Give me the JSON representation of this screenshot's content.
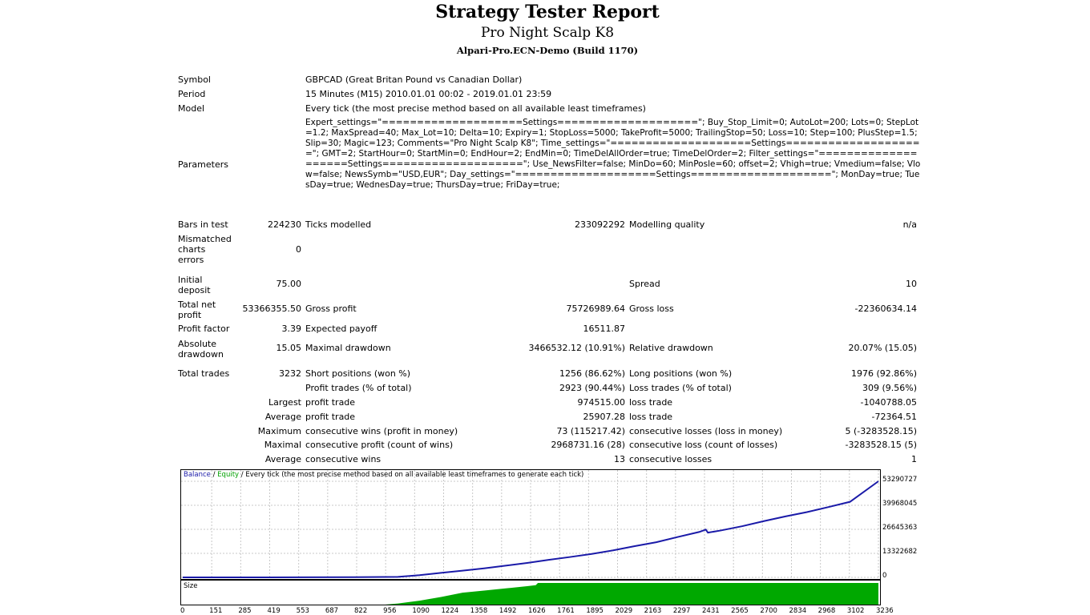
{
  "header": {
    "title": "Strategy Tester Report",
    "expert": "Pro Night Scalp K8",
    "server": "Alpari-Pro.ECN-Demo (Build 1170)"
  },
  "info": {
    "symbol_label": "Symbol",
    "symbol": "GBPCAD (Great Britan Pound vs Canadian Dollar)",
    "period_label": "Period",
    "period": "15 Minutes (M15) 2010.01.01 00:02 - 2019.01.01 23:59",
    "model_label": "Model",
    "model": "Every tick (the most precise method based on all available least timeframes)",
    "parameters_label": "Parameters",
    "parameters": "Expert_settings=\"====================Settings====================\"; Buy_Stop_Limit=0; AutoLot=200; Lots=0; StepLot=1.2; MaxSpread=40; Max_Lot=10; Delta=10; Expiry=1; StopLoss=5000; TakeProfit=5000; TrailingStop=50; Loss=10; Step=100; PlusStep=1.5; Slip=30; Magic=123; Comments=\"Pro Night Scalp K8\"; Time_settings=\"====================Settings====================\"; GMT=2; StartHour=0; StartMin=0; EndHour=2; EndMin=0; TimeDelAllOrder=true; TimeDelOrder=2; Filter_settings=\"====================Settings====================\"; Use_NewsFilter=false; MinDo=60; MinPosle=60; offset=2; Vhigh=true; Vmedium=false; Vlow=false; NewsSymb=\"USD,EUR\"; Day_settings=\"====================Settings====================\"; MonDay=true; TuesDay=true; WednesDay=true; ThursDay=true; FriDay=true;"
  },
  "stats": {
    "bars_label": "Bars in test",
    "bars": "224230",
    "ticks_label": "Ticks modelled",
    "ticks": "233092292",
    "quality_label": "Modelling quality",
    "quality": "n/a",
    "mismatch_label_1": "Mismatched",
    "mismatch_label_2": "charts",
    "mismatch_label_3": "errors",
    "mismatch": "0",
    "deposit_label_1": "Initial",
    "deposit_label_2": "deposit",
    "deposit": "75.00",
    "spread_label": "Spread",
    "spread": "10",
    "net_label_1": "Total net",
    "net_label_2": "profit",
    "net": "53366355.50",
    "gross_profit_label": "Gross profit",
    "gross_profit": "75726989.64",
    "gross_loss_label": "Gross loss",
    "gross_loss": "-22360634.14",
    "pf_label": "Profit factor",
    "pf": "3.39",
    "payoff_label": "Expected payoff",
    "payoff": "16511.87",
    "abs_dd_label_1": "Absolute",
    "abs_dd_label_2": "drawdown",
    "abs_dd": "15.05",
    "max_dd_label": "Maximal drawdown",
    "max_dd": "3466532.12 (10.91%)",
    "rel_dd_label": "Relative drawdown",
    "rel_dd": "20.07% (15.05)",
    "trades_label": "Total trades",
    "trades": "3232",
    "short_label": "Short positions (won %)",
    "short": "1256 (86.62%)",
    "long_label": "Long positions (won %)",
    "long": "1976 (92.86%)",
    "profit_trades_label": "Profit trades (% of total)",
    "profit_trades": "2923 (90.44%)",
    "loss_trades_label": "Loss trades (% of total)",
    "loss_trades": "309 (9.56%)",
    "largest_label": "Largest",
    "largest_profit_label": "profit trade",
    "largest_profit": "974515.00",
    "largest_loss_label": "loss trade",
    "largest_loss": "-1040788.05",
    "average_label": "Average",
    "average_profit_label": "profit trade",
    "average_profit": "25907.28",
    "average_loss_label": "loss trade",
    "average_loss": "-72364.51",
    "maximum_label": "Maximum",
    "max_cons_wins_label": "consecutive wins (profit in money)",
    "max_cons_wins": "73 (115217.42)",
    "max_cons_losses_label": "consecutive losses (loss in money)",
    "max_cons_losses": "5 (-3283528.15)",
    "maximal_label": "Maximal",
    "maximal_profit_label": "consecutive profit (count of wins)",
    "maximal_profit": "2968731.16 (28)",
    "maximal_loss_label": "consecutive loss (count of losses)",
    "maximal_loss": "-3283528.15 (5)",
    "avg_cons_label": "Average",
    "avg_cons_wins_label": "consecutive wins",
    "avg_cons_wins": "13",
    "avg_cons_losses_label": "consecutive losses",
    "avg_cons_losses": "1"
  },
  "chart_labels": {
    "balance": "Balance",
    "sep": " / ",
    "equity": "Equity",
    "rest": " / Every tick (the most precise method based on all available least timeframes to generate each tick)",
    "size": "Size"
  },
  "colors": {
    "balance": "#1a1aa8",
    "equity": "#00a000",
    "size_fill": "#00a800",
    "grid": "#c8c8c8"
  },
  "chart_data": {
    "type": "line",
    "title": "",
    "xlabel": "",
    "ylabel": "",
    "x_ticks": [
      "0",
      "151",
      "285",
      "419",
      "553",
      "687",
      "822",
      "956",
      "1090",
      "1224",
      "1358",
      "1492",
      "1626",
      "1761",
      "1895",
      "2029",
      "2163",
      "2297",
      "2431",
      "2565",
      "2700",
      "2834",
      "2968",
      "3102",
      "3236"
    ],
    "y_ticks": [
      "53290727",
      "39968045",
      "26645363",
      "13322682",
      "0"
    ],
    "ylim": [
      0,
      53290727
    ],
    "xlim": [
      0,
      3232
    ],
    "series": [
      {
        "name": "Balance",
        "x": [
          0,
          400,
          800,
          1000,
          1100,
          1200,
          1300,
          1400,
          1500,
          1600,
          1700,
          1800,
          1900,
          2000,
          2100,
          2200,
          2300,
          2400,
          2430,
          2440,
          2500,
          2600,
          2700,
          2800,
          2900,
          3000,
          3100,
          3232
        ],
        "y": [
          75,
          10000,
          100000,
          300000,
          1200000,
          2500000,
          3700000,
          5000000,
          6500000,
          8000000,
          9700000,
          11300000,
          13000000,
          15000000,
          17300000,
          19500000,
          22400000,
          25200000,
          26500000,
          24800000,
          26000000,
          28400000,
          31200000,
          33800000,
          36200000,
          39000000,
          41900000,
          53290727
        ]
      }
    ],
    "size_series": {
      "x": [
        0,
        940,
        1000,
        1100,
        1200,
        1300,
        1400,
        1500,
        1600,
        1640,
        1650,
        3232
      ],
      "level": [
        0,
        0,
        0.05,
        0.18,
        0.35,
        0.55,
        0.65,
        0.75,
        0.85,
        0.9,
        1,
        1
      ]
    }
  }
}
